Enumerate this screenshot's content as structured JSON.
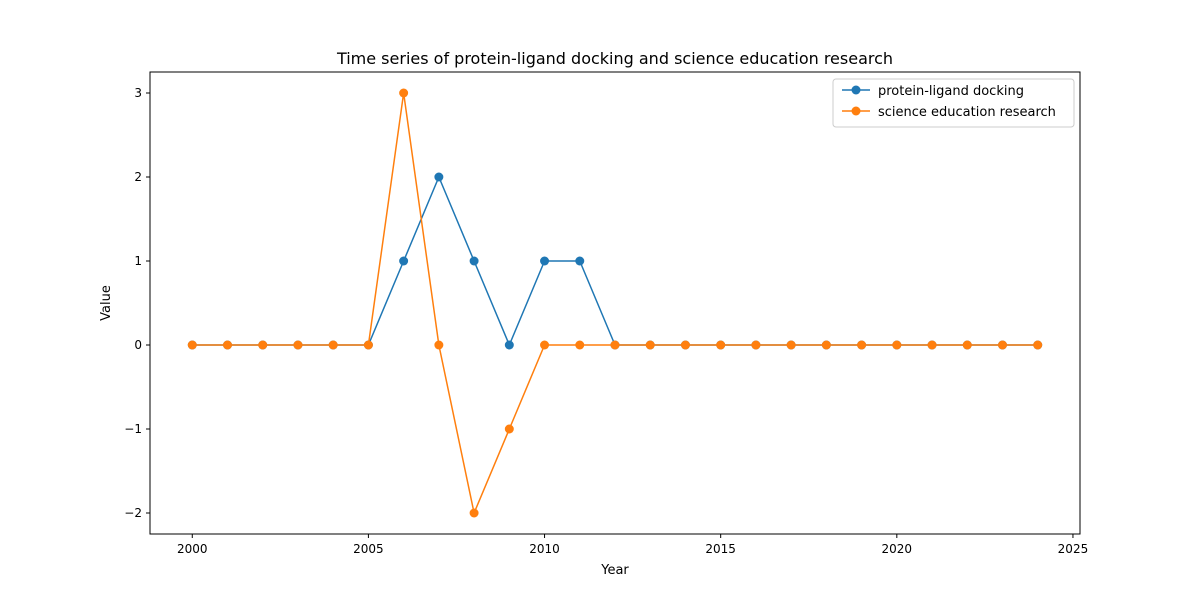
{
  "chart_data": {
    "type": "line",
    "title": "Time series of protein-ligand docking and science education research",
    "xlabel": "Year",
    "ylabel": "Value",
    "x": [
      2000,
      2001,
      2002,
      2003,
      2004,
      2005,
      2006,
      2007,
      2008,
      2009,
      2010,
      2011,
      2012,
      2013,
      2014,
      2015,
      2016,
      2017,
      2018,
      2019,
      2020,
      2021,
      2022,
      2023,
      2024
    ],
    "xlim": [
      1998.8,
      2025.2
    ],
    "ylim": [
      -2.25,
      3.25
    ],
    "xticks": [
      2000,
      2005,
      2010,
      2015,
      2020,
      2025
    ],
    "yticks": [
      -2,
      -1,
      0,
      1,
      2,
      3
    ],
    "xtick_labels": [
      "2000",
      "2005",
      "2010",
      "2015",
      "2020",
      "2025"
    ],
    "ytick_labels": [
      "−2",
      "−1",
      "0",
      "1",
      "2",
      "3"
    ],
    "grid": false,
    "legend_position": "top-right",
    "series": [
      {
        "name": "protein-ligand docking",
        "color": "#1f77b4",
        "values": [
          0,
          0,
          0,
          0,
          0,
          0,
          1,
          2,
          1,
          0,
          1,
          1,
          0,
          0,
          0,
          0,
          0,
          0,
          0,
          0,
          0,
          0,
          0,
          0,
          0
        ]
      },
      {
        "name": "science education research",
        "color": "#ff7f0e",
        "values": [
          0,
          0,
          0,
          0,
          0,
          0,
          3,
          0,
          -2,
          -1,
          0,
          0,
          0,
          0,
          0,
          0,
          0,
          0,
          0,
          0,
          0,
          0,
          0,
          0,
          0
        ]
      }
    ]
  }
}
